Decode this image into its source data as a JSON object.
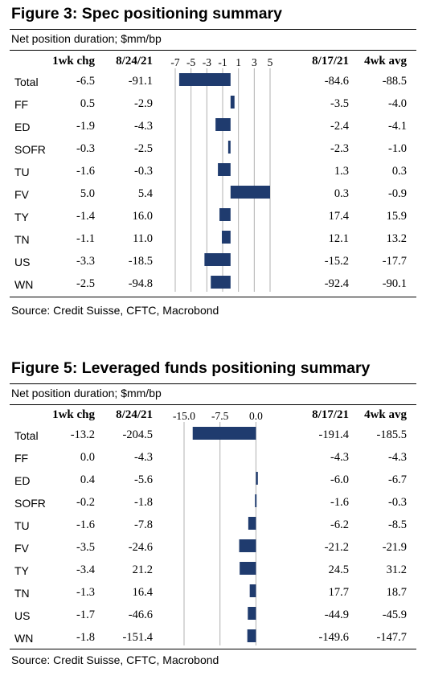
{
  "chart_data": [
    {
      "type": "table",
      "title": "Figure 3: Spec positioning summary",
      "subtitle": "Net position duration; $mm/bp",
      "source": "Source: Credit Suisse, CFTC, Macrobond",
      "columns": [
        "1wk chg",
        "8/24/21",
        "8/17/21",
        "4wk avg"
      ],
      "bar_axis": {
        "ticks": [
          "-7",
          "-5",
          "-3",
          "-1",
          "1",
          "3",
          "5"
        ],
        "range": [
          -7,
          5
        ],
        "grid": true
      },
      "rows": [
        {
          "label": "Total",
          "chg": "-6.5",
          "current": "-91.1",
          "prev": "-84.6",
          "avg": "-88.5",
          "bar": -6.5
        },
        {
          "label": "FF",
          "chg": "0.5",
          "current": "-2.9",
          "prev": "-3.5",
          "avg": "-4.0",
          "bar": 0.5
        },
        {
          "label": "ED",
          "chg": "-1.9",
          "current": "-4.3",
          "prev": "-2.4",
          "avg": "-4.1",
          "bar": -1.9
        },
        {
          "label": "SOFR",
          "chg": "-0.3",
          "current": "-2.5",
          "prev": "-2.3",
          "avg": "-1.0",
          "bar": -0.3
        },
        {
          "label": "TU",
          "chg": "-1.6",
          "current": "-0.3",
          "prev": "1.3",
          "avg": "0.3",
          "bar": -1.6
        },
        {
          "label": "FV",
          "chg": "5.0",
          "current": "5.4",
          "prev": "0.3",
          "avg": "-0.9",
          "bar": 5.0
        },
        {
          "label": "TY",
          "chg": "-1.4",
          "current": "16.0",
          "prev": "17.4",
          "avg": "15.9",
          "bar": -1.4
        },
        {
          "label": "TN",
          "chg": "-1.1",
          "current": "11.0",
          "prev": "12.1",
          "avg": "13.2",
          "bar": -1.1
        },
        {
          "label": "US",
          "chg": "-3.3",
          "current": "-18.5",
          "prev": "-15.2",
          "avg": "-17.7",
          "bar": -3.3
        },
        {
          "label": "WN",
          "chg": "-2.5",
          "current": "-94.8",
          "prev": "-92.4",
          "avg": "-90.1",
          "bar": -2.5
        }
      ],
      "bar_color": "#1f3b6e"
    },
    {
      "type": "table",
      "title": "Figure 5: Leveraged funds positioning summary",
      "subtitle": "Net position duration; $mm/bp",
      "source": "Source: Credit Suisse, CFTC, Macrobond",
      "columns": [
        "1wk chg",
        "8/24/21",
        "8/17/21",
        "4wk avg"
      ],
      "bar_axis": {
        "ticks": [
          "-15.0",
          "-7.5",
          "0.0"
        ],
        "range": [
          -15,
          0.6
        ],
        "grid": true
      },
      "rows": [
        {
          "label": "Total",
          "chg": "-13.2",
          "current": "-204.5",
          "prev": "-191.4",
          "avg": "-185.5",
          "bar": -13.2
        },
        {
          "label": "FF",
          "chg": "0.0",
          "current": "-4.3",
          "prev": "-4.3",
          "avg": "-4.3",
          "bar": 0.0
        },
        {
          "label": "ED",
          "chg": "0.4",
          "current": "-5.6",
          "prev": "-6.0",
          "avg": "-6.7",
          "bar": 0.4
        },
        {
          "label": "SOFR",
          "chg": "-0.2",
          "current": "-1.8",
          "prev": "-1.6",
          "avg": "-0.3",
          "bar": -0.2
        },
        {
          "label": "TU",
          "chg": "-1.6",
          "current": "-7.8",
          "prev": "-6.2",
          "avg": "-8.5",
          "bar": -1.6
        },
        {
          "label": "FV",
          "chg": "-3.5",
          "current": "-24.6",
          "prev": "-21.2",
          "avg": "-21.9",
          "bar": -3.5
        },
        {
          "label": "TY",
          "chg": "-3.4",
          "current": "21.2",
          "prev": "24.5",
          "avg": "31.2",
          "bar": -3.4
        },
        {
          "label": "TN",
          "chg": "-1.3",
          "current": "16.4",
          "prev": "17.7",
          "avg": "18.7",
          "bar": -1.3
        },
        {
          "label": "US",
          "chg": "-1.7",
          "current": "-46.6",
          "prev": "-44.9",
          "avg": "-45.9",
          "bar": -1.7
        },
        {
          "label": "WN",
          "chg": "-1.8",
          "current": "-151.4",
          "prev": "-149.6",
          "avg": "-147.7",
          "bar": -1.8
        }
      ],
      "bar_color": "#1f3b6e"
    }
  ]
}
